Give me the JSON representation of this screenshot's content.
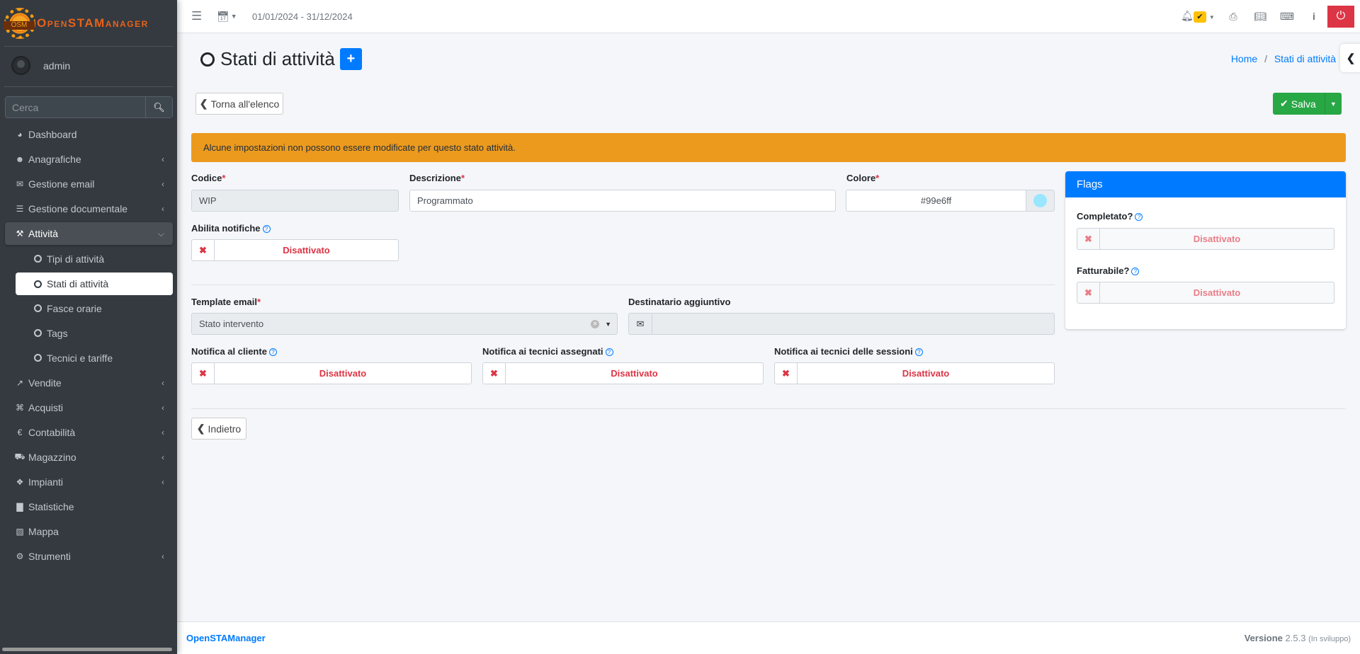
{
  "app": {
    "logo_badge": "OSM",
    "logo_text": "OpenSTAManager",
    "logo_mark": "®"
  },
  "sidebar": {
    "user": "admin",
    "search_placeholder": "Cerca",
    "items": [
      {
        "label": "Dashboard",
        "icon": "dashboard-icon",
        "chevron": false
      },
      {
        "label": "Anagrafiche",
        "icon": "users-icon",
        "chevron": true
      },
      {
        "label": "Gestione email",
        "icon": "envelope-icon",
        "chevron": true
      },
      {
        "label": "Gestione documentale",
        "icon": "file-icon",
        "chevron": true
      },
      {
        "label": "Attività",
        "icon": "wrench-icon",
        "chevron": true,
        "active": true
      }
    ],
    "subitems": [
      {
        "label": "Tipi di attività"
      },
      {
        "label": "Stati di attività",
        "active": true
      },
      {
        "label": "Fasce orarie"
      },
      {
        "label": "Tags"
      },
      {
        "label": "Tecnici e tariffe"
      }
    ],
    "items_after": [
      {
        "label": "Vendite",
        "icon": "chart-line-icon",
        "chevron": true
      },
      {
        "label": "Acquisti",
        "icon": "cart-icon",
        "chevron": true
      },
      {
        "label": "Contabilità",
        "icon": "euro-icon",
        "chevron": true
      },
      {
        "label": "Magazzino",
        "icon": "truck-icon",
        "chevron": true
      },
      {
        "label": "Impianti",
        "icon": "puzzle-icon",
        "chevron": true
      },
      {
        "label": "Statistiche",
        "icon": "bar-chart-icon",
        "chevron": false
      },
      {
        "label": "Mappa",
        "icon": "map-icon",
        "chevron": false
      },
      {
        "label": "Strumenti",
        "icon": "cog-icon",
        "chevron": true
      }
    ]
  },
  "topbar": {
    "period": "01/01/2024 - 31/12/2024"
  },
  "page": {
    "title": "Stati di attività",
    "breadcrumb": {
      "home": "Home",
      "current": "Stati di attività"
    },
    "back_list": "Torna all'elenco",
    "save": "Salva",
    "alert": "Alcune impostazioni non possono essere modificate per questo stato attività.",
    "codice": {
      "label": "Codice",
      "value": "WIP"
    },
    "descrizione": {
      "label": "Descrizione",
      "value": "Programmato"
    },
    "colore": {
      "label": "Colore",
      "value": "#99e6ff"
    },
    "abilita_notifiche": {
      "label": "Abilita notifiche",
      "value": "Disattivato"
    },
    "template_email": {
      "label": "Template email",
      "value": "Stato intervento"
    },
    "destinatario": {
      "label": "Destinatario aggiuntivo",
      "value": ""
    },
    "notifica_cliente": {
      "label": "Notifica al cliente",
      "value": "Disattivato"
    },
    "notifica_tecnici_assegnati": {
      "label": "Notifica ai tecnici assegnati",
      "value": "Disattivato"
    },
    "notifica_tecnici_sessioni": {
      "label": "Notifica ai tecnici delle sessioni",
      "value": "Disattivato"
    },
    "back": "Indietro",
    "flags": {
      "title": "Flags",
      "completato": {
        "label": "Completato?",
        "value": "Disattivato"
      },
      "fatturabile": {
        "label": "Fatturabile?",
        "value": "Disattivato"
      }
    }
  },
  "footer": {
    "brand": "OpenSTAManager",
    "version_label": "Versione",
    "version": "2.5.3",
    "dev": "(In sviluppo)"
  },
  "colors": {
    "primary": "#007bff",
    "success": "#28a745",
    "danger": "#dc3545",
    "warning": "#ec9a1e",
    "sidebar": "#343a40"
  }
}
